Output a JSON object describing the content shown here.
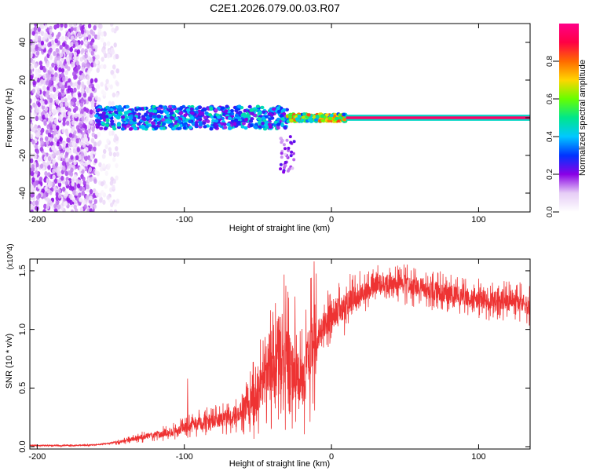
{
  "title": "C2E1.2026.079.00.03.R07",
  "chart_data": [
    {
      "type": "heatmap",
      "xlabel": "Height of straight line (km)",
      "ylabel": "Frequency (Hz)",
      "xlim": [
        -205,
        135
      ],
      "ylim": [
        -50,
        50
      ],
      "xticks": [
        -200,
        -100,
        0,
        100
      ],
      "yticks": [
        -40,
        -20,
        0,
        20,
        40
      ],
      "colorbar": {
        "label": "Normalized spectral amplitude",
        "range": [
          0,
          1
        ],
        "ticks": [
          0.0,
          0.2,
          0.4,
          0.6,
          0.8
        ],
        "colors": [
          "#ffffff",
          "#e6cdf6",
          "#8a00e6",
          "#0033ff",
          "#00c8ff",
          "#00e68c",
          "#66ff00",
          "#ffd500",
          "#ff6a00",
          "#ff0044",
          "#ff0088"
        ]
      },
      "segments": [
        {
          "x_from": -205,
          "x_to": -160,
          "freq_from": -50,
          "freq_to": 50,
          "amplitude": 0.1,
          "pattern": "noise"
        },
        {
          "x_from": -160,
          "x_to": -145,
          "freq_from": -50,
          "freq_to": 50,
          "amplitude": 0.05,
          "pattern": "sparse noise"
        },
        {
          "x_from": -160,
          "x_to": -30,
          "freq_center": 0,
          "freq_half_width": 6,
          "amplitude": 0.35,
          "pattern": "band"
        },
        {
          "x_from": -35,
          "x_to": -25,
          "freq_from": -30,
          "freq_to": -10,
          "amplitude": 0.15,
          "pattern": "tail"
        },
        {
          "x_from": -30,
          "x_to": 10,
          "freq_center": 0,
          "freq_half_width": 2,
          "amplitude": 0.6,
          "pattern": "band"
        },
        {
          "x_from": 10,
          "x_to": 135,
          "freq_center": 0,
          "freq_half_width": 0.5,
          "amplitude": 0.95,
          "pattern": "line"
        }
      ]
    },
    {
      "type": "line",
      "xlabel": "Height of straight line (km)",
      "ylabel": "SNR (10 * v/v)",
      "yunit_multiplier": "(x10^4)",
      "xlim": [
        -205,
        135
      ],
      "ylim": [
        -0.02,
        1.6
      ],
      "xticks": [
        -200,
        -100,
        0,
        100
      ],
      "yticks": [
        0.0,
        0.5,
        1.0,
        1.5
      ],
      "series": [
        {
          "color": "#ee3333",
          "points": [
            [
              -205,
              0.01
            ],
            [
              -180,
              0.01
            ],
            [
              -160,
              0.015
            ],
            [
              -150,
              0.03
            ],
            [
              -140,
              0.05
            ],
            [
              -130,
              0.08
            ],
            [
              -120,
              0.1
            ],
            [
              -110,
              0.12
            ],
            [
              -100,
              0.16
            ],
            [
              -90,
              0.2
            ],
            [
              -80,
              0.22
            ],
            [
              -70,
              0.25
            ],
            [
              -60,
              0.3
            ],
            [
              -50,
              0.45
            ],
            [
              -45,
              0.6
            ],
            [
              -40,
              0.75
            ],
            [
              -35,
              0.85
            ],
            [
              -30,
              0.75
            ],
            [
              -25,
              0.6
            ],
            [
              -20,
              0.55
            ],
            [
              -15,
              0.75
            ],
            [
              -12,
              0.9
            ],
            [
              -8,
              0.95
            ],
            [
              -5,
              1.05
            ],
            [
              0,
              1.12
            ],
            [
              10,
              1.2
            ],
            [
              20,
              1.3
            ],
            [
              30,
              1.38
            ],
            [
              40,
              1.4
            ],
            [
              50,
              1.38
            ],
            [
              60,
              1.36
            ],
            [
              70,
              1.33
            ],
            [
              80,
              1.3
            ],
            [
              90,
              1.28
            ],
            [
              100,
              1.26
            ],
            [
              110,
              1.25
            ],
            [
              120,
              1.24
            ],
            [
              130,
              1.22
            ],
            [
              135,
              1.2
            ]
          ],
          "peaks": [
            [
              -98,
              0.58
            ],
            [
              -12,
              1.58
            ],
            [
              -25,
              1.28
            ],
            [
              -40,
              1.15
            ]
          ]
        }
      ]
    }
  ]
}
